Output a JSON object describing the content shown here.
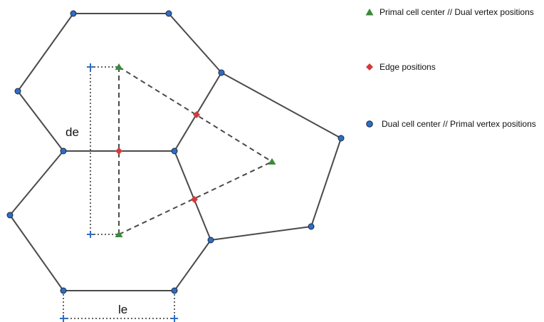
{
  "legend": [
    {
      "marker": "triangle",
      "label": "Primal cell center // Dual vertex positions"
    },
    {
      "marker": "diamond",
      "label": "Edge positions"
    },
    {
      "marker": "circle",
      "label": "Dual cell center // Primal vertex positions"
    }
  ],
  "labels": {
    "de": "de",
    "le": "le"
  },
  "colors": {
    "primal_edge": "#4a4a4a",
    "dual_edge": "#4a4a4a",
    "triangle": "#3a8a3a",
    "diamond": "#d43a3a",
    "circle": "#2e6dc4",
    "measure_marker": "#2e6dc4"
  }
}
